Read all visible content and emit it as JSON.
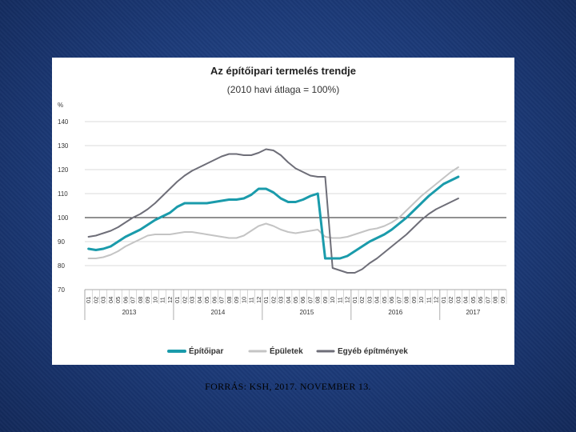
{
  "source_text": "FORRÁS: KSH, 2017. NOVEMBER 13.",
  "colors": {
    "epitoipar": "#1a9bab",
    "epuletek": "#c4c4c4",
    "egyeb": "#6e6e78"
  },
  "chart_data": {
    "type": "line",
    "title": "Az építőipari termelés trendje",
    "subtitle": "(2010 havi átlaga = 100%)",
    "ylabel": "%",
    "xlabel": "",
    "ylim": [
      70,
      140
    ],
    "yticks": [
      140,
      130,
      120,
      110,
      100,
      90,
      80,
      70
    ],
    "grid": true,
    "legend": "bottom",
    "months": [
      "01",
      "02",
      "03",
      "04",
      "05",
      "06",
      "07",
      "08",
      "09",
      "10",
      "11",
      "12",
      "01",
      "02",
      "03",
      "04",
      "05",
      "06",
      "07",
      "08",
      "09",
      "10",
      "11",
      "12",
      "01",
      "02",
      "03",
      "04",
      "05",
      "06",
      "07",
      "08",
      "09",
      "10",
      "11",
      "12",
      "01",
      "02",
      "03",
      "04",
      "05",
      "06",
      "07",
      "08",
      "09",
      "10",
      "11",
      "12",
      "01",
      "02",
      "03",
      "04",
      "05",
      "06",
      "07",
      "08",
      "09"
    ],
    "years": [
      "2013",
      "2014",
      "2015",
      "2016",
      "2017"
    ],
    "series": [
      {
        "name": "Építőipar",
        "values": [
          87,
          86.5,
          87,
          88,
          90,
          92,
          93.5,
          95,
          97,
          99,
          100.5,
          102,
          104.5,
          106,
          106,
          106,
          106,
          106.5,
          107,
          107.5,
          107.5,
          108,
          109.5,
          112,
          112,
          110.5,
          108,
          106.5,
          106.5,
          107.5,
          109,
          110,
          83,
          83,
          83,
          84,
          86,
          88,
          90,
          91.5,
          93,
          95,
          97.5,
          100,
          103,
          106,
          109,
          111.5,
          114,
          115.5,
          117,
          null,
          null,
          null,
          null,
          null,
          null
        ]
      },
      {
        "name": "Épületek",
        "values": [
          83,
          83,
          83.5,
          84.5,
          86,
          88,
          89.5,
          91,
          92.5,
          93,
          93,
          93,
          93.5,
          94,
          94,
          93.5,
          93,
          92.5,
          92,
          91.5,
          91.5,
          92.5,
          94.5,
          96.5,
          97.5,
          96.5,
          95,
          94,
          93.5,
          94,
          94.5,
          95,
          92,
          91.5,
          91.5,
          92,
          93,
          94,
          95,
          95.5,
          96.5,
          98,
          100,
          103,
          106,
          109,
          111.5,
          114,
          116.5,
          119,
          121,
          null,
          null,
          null,
          null,
          null,
          null
        ]
      },
      {
        "name": "Egyéb építmények",
        "values": [
          92,
          92.5,
          93.5,
          94.5,
          96,
          98,
          100,
          101.5,
          103.5,
          106,
          109,
          112,
          115,
          117.5,
          119.5,
          121,
          122.5,
          124,
          125.5,
          126.5,
          126.5,
          126,
          126,
          127,
          128.5,
          128,
          126,
          123,
          120.5,
          119,
          117.5,
          117,
          117,
          79,
          78,
          77,
          77,
          78.5,
          81,
          83,
          85.5,
          88,
          90.5,
          93,
          96,
          99,
          101.5,
          103.5,
          105,
          106.5,
          108,
          null,
          null,
          null,
          null,
          null,
          null
        ]
      }
    ]
  }
}
